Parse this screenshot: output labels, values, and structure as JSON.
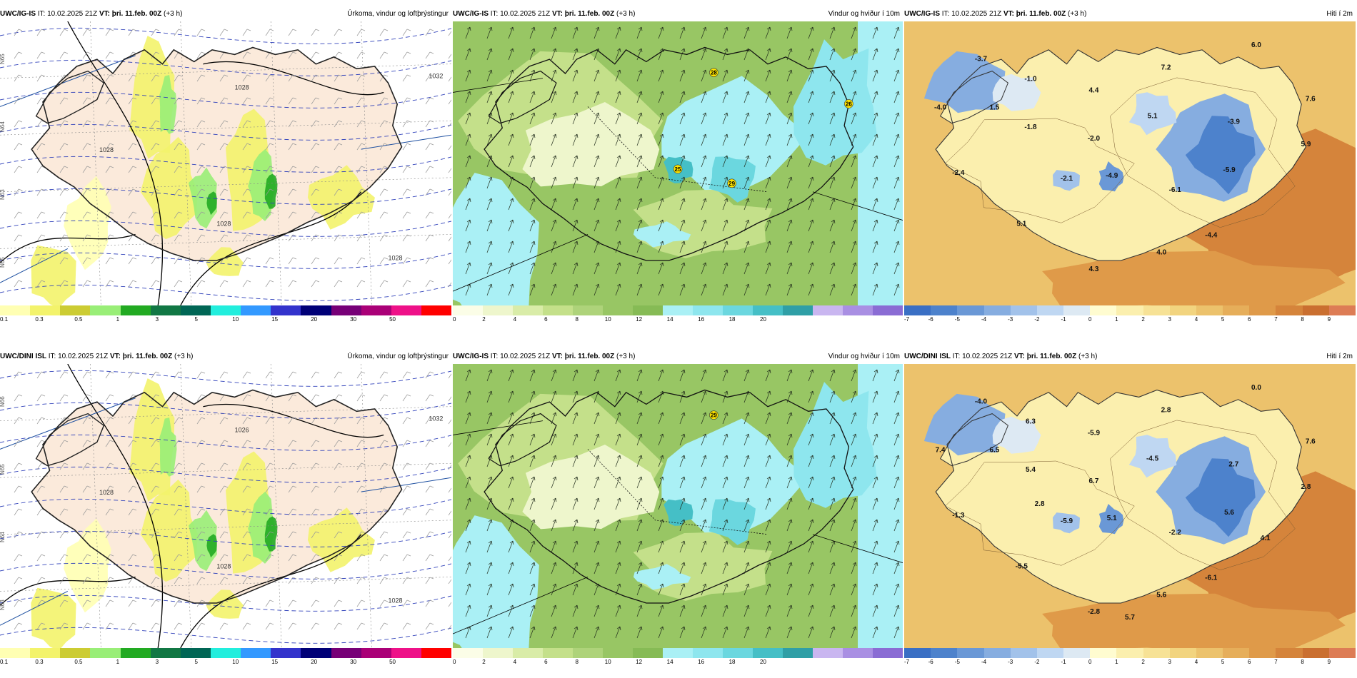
{
  "panels": [
    {
      "id": "p1",
      "model": "UWC/IG-IS",
      "it": "IT: 10.02.2025 21Z",
      "vt_label": "VT:",
      "vt": "þri. 11.feb. 00Z",
      "offset": "(+3 h)",
      "title": "Úrkoma, vindur og loftþrýstingur",
      "kind": "precip",
      "isobars": [
        "1028",
        "1028",
        "1028",
        "1028",
        "1032"
      ],
      "grid_labels": [
        "N65",
        "N64",
        "N63",
        "N65"
      ]
    },
    {
      "id": "p2",
      "model": "UWC/IG-IS",
      "it": "IT: 10.02.2025 21Z",
      "vt_label": "VT:",
      "vt": "þri. 11.feb. 00Z",
      "offset": "(+3 h)",
      "title": "Vindur og hviður í 10m",
      "kind": "wind",
      "gusts": [
        "28",
        "26",
        "25",
        "29"
      ]
    },
    {
      "id": "p3",
      "model": "UWC/IG-IS",
      "it": "IT: 10.02.2025 21Z",
      "vt_label": "VT:",
      "vt": "þri. 11.feb. 00Z",
      "offset": "(+3 h)",
      "title": "Hiti í 2m",
      "kind": "temp",
      "temps": [
        "-3.7",
        "6.0",
        "-1.0",
        "7.2",
        "-4.0",
        "1.5",
        "4.4",
        "7.6",
        "-1.8",
        "5.1",
        "-3.9",
        "-2.0",
        "5.9",
        "-2.4",
        "-2.1",
        "-4.9",
        "-5.9",
        "-6.1",
        "5.1",
        "-4.4",
        "4.0",
        "4.3"
      ]
    },
    {
      "id": "p4",
      "model": "UWC/DINI ISL",
      "it": "IT: 10.02.2025 21Z",
      "vt_label": "VT:",
      "vt": "þri. 11.feb. 00Z",
      "offset": "(+3 h)",
      "title": "Úrkoma, vindur og loftþrýstingur",
      "kind": "precip",
      "isobars": [
        "1026",
        "1028",
        "1028",
        "1028",
        "1032"
      ],
      "grid_labels": [
        "N66",
        "N65",
        "N64",
        "N63"
      ]
    },
    {
      "id": "p5",
      "model": "UWC/IG-IS",
      "it": "IT: 10.02.2025 21Z",
      "vt_label": "VT:",
      "vt": "þri. 11.feb. 00Z",
      "offset": "(+3 h)",
      "title": "Vindur og hviður í 10m",
      "kind": "wind",
      "gusts": [
        "29"
      ]
    },
    {
      "id": "p6",
      "model": "UWC/DINI ISL",
      "it": "IT: 10.02.2025 21Z",
      "vt_label": "VT:",
      "vt": "þri. 11.feb. 00Z",
      "offset": "(+3 h)",
      "title": "Hiti í 2m",
      "kind": "temp",
      "temps": [
        "-4.0",
        "0.0",
        "6.3",
        "2.8",
        "7.4",
        "6.5",
        "-5.9",
        "7.6",
        "5.4",
        "-4.5",
        "2.7",
        "6.7",
        "2.8",
        "-1.3",
        "-5.9",
        "5.1",
        "5.6",
        "-2.2",
        "-5.5",
        "-6.1",
        "5.6",
        "-2.8",
        "5.7",
        "2.8",
        "4.1"
      ]
    }
  ],
  "colorbars": {
    "precip": {
      "colors": [
        "#ffffb3",
        "#f3f36b",
        "#cccc33",
        "#99ee77",
        "#22aa22",
        "#117744",
        "#006655",
        "#22eedd",
        "#3399ff",
        "#3333cc",
        "#000077",
        "#770077",
        "#aa0077",
        "#ee1188",
        "#ff0000"
      ],
      "labels": [
        "0.1",
        "0.3",
        "0.5",
        "1",
        "3",
        "5",
        "10",
        "15",
        "20",
        "30",
        "50"
      ]
    },
    "wind": {
      "colors": [
        "#fbfde7",
        "#eef6cc",
        "#d9eca8",
        "#c4e08a",
        "#aed37a",
        "#98c664",
        "#86bb55",
        "#aaf0f5",
        "#8ee6ee",
        "#6bd7df",
        "#45bfc6",
        "#2f9fa6",
        "#c9b6f0",
        "#a98fe3",
        "#8a6cd4"
      ],
      "labels": [
        "0",
        "2",
        "4",
        "6",
        "8",
        "10",
        "12",
        "14",
        "16",
        "18",
        "20"
      ]
    },
    "temp": {
      "colors": [
        "#3a6fc4",
        "#4d82cc",
        "#6a98d6",
        "#86ade0",
        "#a2c2ea",
        "#bfd7f2",
        "#dde9f3",
        "#fffcd0",
        "#fbefae",
        "#f7e296",
        "#f2d47f",
        "#ecc26c",
        "#e6ae5a",
        "#df9a49",
        "#d5843b",
        "#ca6f30",
        "#dd7c55"
      ],
      "labels": [
        "-7",
        "-6",
        "-5",
        "-4",
        "-3",
        "-2",
        "-1",
        "0",
        "1",
        "2",
        "3",
        "4",
        "5",
        "6",
        "7",
        "8",
        "9"
      ]
    }
  }
}
